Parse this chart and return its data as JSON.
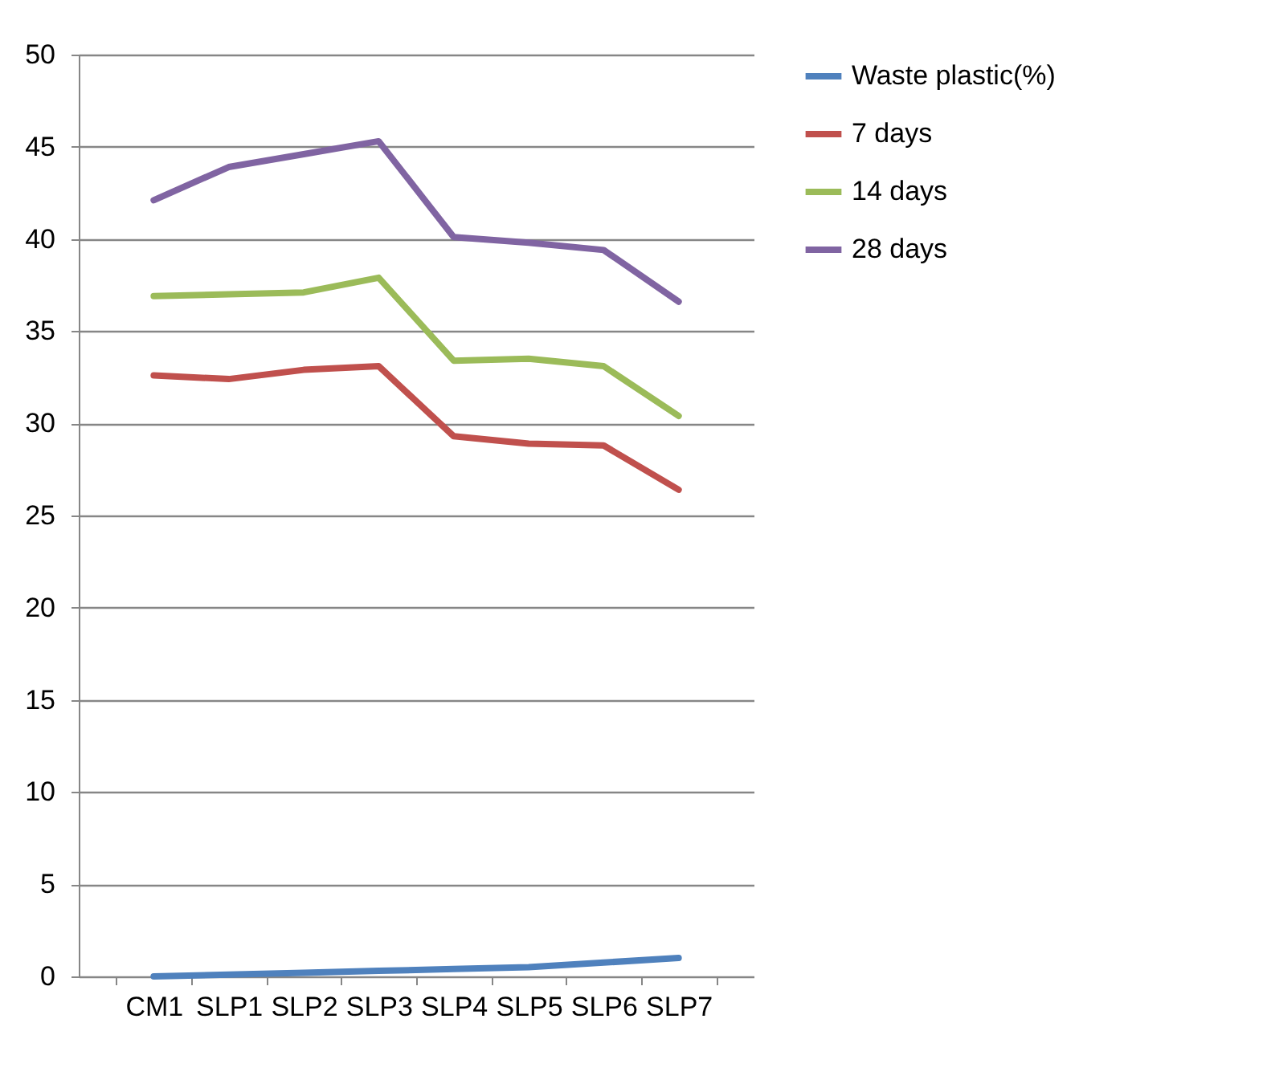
{
  "chart_data": {
    "type": "line",
    "categories": [
      "CM1",
      "SLP1",
      "SLP2",
      "SLP3",
      "SLP4",
      "SLP5",
      "SLP6",
      "SLP7"
    ],
    "series": [
      {
        "name": "Waste plastic(%)",
        "color": "#4f81bd",
        "values": [
          0,
          0.1,
          0.2,
          0.3,
          0.4,
          0.5,
          0.75,
          1.0
        ]
      },
      {
        "name": "7 days",
        "color": "#c0504d",
        "values": [
          32.6,
          32.4,
          32.9,
          33.1,
          29.3,
          28.9,
          28.8,
          26.4
        ]
      },
      {
        "name": "14 days",
        "color": "#9bbb59",
        "values": [
          36.9,
          37.0,
          37.1,
          37.9,
          33.4,
          33.5,
          33.1,
          30.4
        ]
      },
      {
        "name": "28 days",
        "color": "#8064a2",
        "values": [
          42.1,
          43.9,
          44.6,
          45.3,
          40.1,
          39.8,
          39.4,
          36.6
        ]
      }
    ],
    "ylim": [
      0,
      50
    ],
    "yticks": [
      0,
      5,
      10,
      15,
      20,
      25,
      30,
      35,
      40,
      45,
      50
    ],
    "grid": "y",
    "legend": "right",
    "marker": "none",
    "line_style": "solid"
  }
}
